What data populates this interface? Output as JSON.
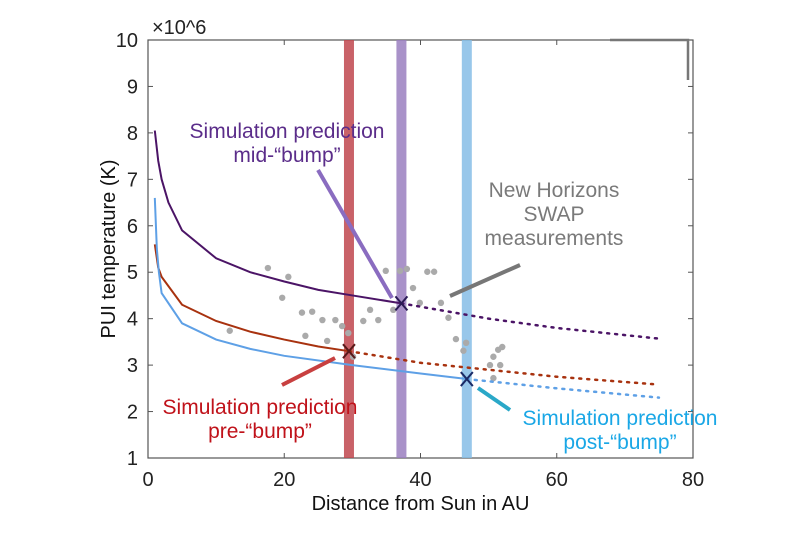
{
  "chart_data": {
    "type": "line",
    "xlabel": "Distance from Sun in AU",
    "ylabel": "PUI temperature (K)",
    "y_multiplier_label": "×10^6",
    "xlim": [
      0,
      80
    ],
    "ylim": [
      1,
      10
    ],
    "xticks": [
      0,
      20,
      40,
      60,
      80
    ],
    "yticks": [
      1,
      2,
      3,
      4,
      5,
      6,
      7,
      8,
      9,
      10
    ],
    "grid": false,
    "series": [
      {
        "color": "#4b1466",
        "solid": [
          [
            1,
            8.05
          ],
          [
            1.5,
            7.4
          ],
          [
            2,
            7.0
          ],
          [
            3,
            6.5
          ],
          [
            5,
            5.9
          ],
          [
            10,
            5.3
          ],
          [
            15,
            5.0
          ],
          [
            20,
            4.8
          ],
          [
            25,
            4.62
          ],
          [
            30,
            4.5
          ],
          [
            37.2,
            4.33
          ]
        ],
        "dotted": [
          [
            37.2,
            4.33
          ],
          [
            50,
            4.0
          ],
          [
            60,
            3.8
          ],
          [
            75,
            3.57
          ]
        ]
      },
      {
        "color": "#a8320f",
        "solid": [
          [
            1,
            5.6
          ],
          [
            1.5,
            5.1
          ],
          [
            2,
            4.9
          ],
          [
            5,
            4.3
          ],
          [
            10,
            3.95
          ],
          [
            15,
            3.72
          ],
          [
            20,
            3.55
          ],
          [
            25,
            3.4
          ],
          [
            29.5,
            3.3
          ]
        ],
        "dotted": [
          [
            29.5,
            3.3
          ],
          [
            40,
            3.05
          ],
          [
            50,
            2.9
          ],
          [
            60,
            2.75
          ],
          [
            75,
            2.58
          ]
        ]
      },
      {
        "color": "#5ea0e6",
        "solid": [
          [
            1,
            6.6
          ],
          [
            1.3,
            5.5
          ],
          [
            1.6,
            5.0
          ],
          [
            2,
            4.55
          ],
          [
            5,
            3.9
          ],
          [
            10,
            3.55
          ],
          [
            15,
            3.35
          ],
          [
            20,
            3.2
          ],
          [
            30,
            3.0
          ],
          [
            40,
            2.82
          ],
          [
            46.8,
            2.7
          ]
        ],
        "dotted": [
          [
            46.8,
            2.7
          ],
          [
            60,
            2.5
          ],
          [
            75,
            2.3
          ]
        ]
      }
    ],
    "bands": [
      {
        "x": 29.5,
        "color": "#c0474e"
      },
      {
        "x": 37.2,
        "color": "#9a7fc0"
      },
      {
        "x": 46.8,
        "color": "#86bde6"
      }
    ],
    "markers": [
      {
        "x": 29.5,
        "y": 3.3,
        "color": "#5a1a1a"
      },
      {
        "x": 37.2,
        "y": 4.33,
        "color": "#2a1a55"
      },
      {
        "x": 46.8,
        "y": 2.7,
        "color": "#1a2a66"
      }
    ],
    "scatter": {
      "color": "#aaaaaa",
      "points": [
        [
          17.6,
          5.09
        ],
        [
          20.6,
          4.9
        ],
        [
          19.7,
          4.45
        ],
        [
          12.0,
          3.74
        ],
        [
          22.6,
          4.13
        ],
        [
          24.1,
          4.15
        ],
        [
          25.6,
          3.97
        ],
        [
          27.5,
          3.97
        ],
        [
          28.5,
          3.84
        ],
        [
          29.4,
          3.69
        ],
        [
          23.1,
          3.63
        ],
        [
          26.3,
          3.52
        ],
        [
          32.6,
          4.19
        ],
        [
          31.6,
          3.95
        ],
        [
          33.8,
          3.97
        ],
        [
          36.0,
          4.19
        ],
        [
          34.9,
          5.03
        ],
        [
          37.0,
          5.03
        ],
        [
          38.0,
          5.07
        ],
        [
          38.9,
          4.66
        ],
        [
          39.9,
          4.34
        ],
        [
          41.0,
          5.01
        ],
        [
          42.0,
          5.01
        ],
        [
          43.0,
          4.34
        ],
        [
          44.1,
          4.02
        ],
        [
          45.2,
          3.56
        ],
        [
          46.7,
          3.48
        ],
        [
          46.3,
          3.31
        ],
        [
          30.1,
          3.18
        ],
        [
          50.2,
          3.0
        ],
        [
          50.7,
          3.18
        ],
        [
          51.4,
          3.33
        ],
        [
          52.0,
          3.39
        ],
        [
          51.7,
          3.0
        ],
        [
          50.7,
          2.72
        ]
      ]
    },
    "annotations": [
      {
        "lines": [
          "Simulation prediction",
          "mid-“bump”"
        ],
        "color": "#5b2d8a"
      },
      {
        "lines": [
          "New Horizons",
          "SWAP",
          "measurements"
        ],
        "color": "#7a7a7a"
      },
      {
        "lines": [
          "Simulation prediction",
          "pre-“bump”"
        ],
        "color": "#c0121a"
      },
      {
        "lines": [
          "Simulation prediction",
          "post-“bump”"
        ],
        "color": "#1aa7e6"
      }
    ]
  }
}
